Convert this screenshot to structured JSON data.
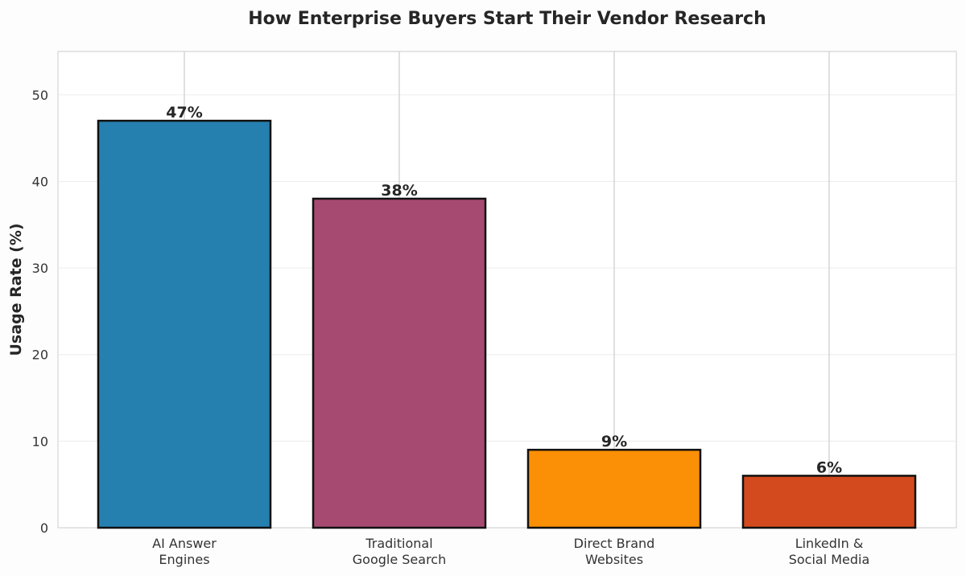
{
  "chart_data": {
    "type": "bar",
    "title": "How Enterprise Buyers Start Their Vendor Research",
    "xlabel": "",
    "ylabel": "Usage Rate (%)",
    "categories": [
      [
        "AI Answer",
        "Engines"
      ],
      [
        "Traditional",
        "Google Search"
      ],
      [
        "Direct Brand",
        "Websites"
      ],
      [
        "LinkedIn &",
        "Social Media"
      ]
    ],
    "values": [
      47,
      38,
      9,
      6
    ],
    "data_labels": [
      "47%",
      "38%",
      "9%",
      "6%"
    ],
    "colors": [
      "#2580b0",
      "#a64a72",
      "#fb8f05",
      "#d34a1e"
    ],
    "ylim": [
      0,
      55
    ],
    "yticks": [
      0,
      10,
      20,
      30,
      40,
      50
    ],
    "grid": true,
    "legend": "none"
  }
}
